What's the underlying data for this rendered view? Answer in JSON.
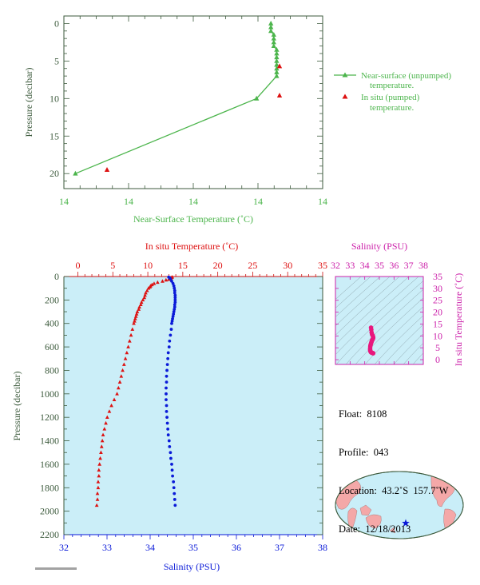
{
  "colors": {
    "green": "#4cb54c",
    "red": "#dd1111",
    "blue": "#0a1ad8",
    "magenta": "#cc22aa",
    "pink": "#e8177d",
    "axis_green": "#3c5a3c",
    "panel_bg": "#cbeef8",
    "land": "#f4a8a8",
    "ocean": "#c9eef8"
  },
  "chart_data": [
    {
      "id": "near-surface",
      "type": "line",
      "xlabel": "Near-Surface Temperature (˚C)",
      "ylabel": "Pressure (decibar)",
      "x_ticks": [
        "14",
        "14",
        "14",
        "14",
        "14"
      ],
      "y_ticks": [
        "0",
        "5",
        "10",
        "15",
        "20"
      ],
      "ylim": [
        -1,
        22
      ],
      "y_inverted": true,
      "grid": false,
      "legend_position": "right",
      "series": [
        {
          "name": "Near-surface (unpumped) temperature.",
          "marker": "triangle",
          "x": [
            13.47,
            13.47,
            13.47,
            13.48,
            13.48,
            13.48,
            13.48,
            13.49,
            13.49,
            13.49,
            13.49,
            13.49,
            13.49,
            13.49,
            13.49,
            13.42,
            12.79
          ],
          "y": [
            0.0,
            0.5,
            1.0,
            1.5,
            2.0,
            2.5,
            3.0,
            3.5,
            4.0,
            4.5,
            5.0,
            5.5,
            6.0,
            6.5,
            7.0,
            10.0,
            20.0
          ]
        },
        {
          "name": "In situ (pumped) temperature.",
          "marker": "triangle",
          "x": [
            13.5,
            13.5,
            12.9
          ],
          "y": [
            5.7,
            9.6,
            19.5
          ]
        }
      ]
    },
    {
      "id": "profile",
      "type": "scatter",
      "title_top": "In situ Temperature (˚C)",
      "xlabel": "Salinity (PSU)",
      "ylabel": "Pressure (decibar)",
      "temp_ticks": [
        "0",
        "5",
        "10",
        "15",
        "20",
        "25",
        "30",
        "35"
      ],
      "sal_ticks": [
        "32",
        "33",
        "34",
        "35",
        "36",
        "37",
        "38"
      ],
      "pressure_ticks": [
        "0",
        "200",
        "400",
        "600",
        "800",
        "1000",
        "1200",
        "1400",
        "1600",
        "1800",
        "2000",
        "2200"
      ],
      "temp_range": [
        -2,
        35
      ],
      "sal_range": [
        32,
        38
      ],
      "pressure_range": [
        0,
        2200
      ],
      "y_inverted": true,
      "series": [
        {
          "name": "In situ Temperature",
          "marker": "triangle",
          "pressure": [
            5,
            10,
            15,
            20,
            25,
            30,
            40,
            50,
            60,
            70,
            80,
            90,
            100,
            120,
            140,
            160,
            180,
            200,
            220,
            240,
            260,
            280,
            300,
            320,
            340,
            360,
            380,
            400,
            450,
            500,
            550,
            600,
            650,
            700,
            750,
            800,
            850,
            900,
            950,
            1000,
            1050,
            1100,
            1150,
            1200,
            1250,
            1300,
            1350,
            1400,
            1450,
            1500,
            1550,
            1600,
            1650,
            1700,
            1750,
            1800,
            1850,
            1900,
            1950
          ],
          "temperature": [
            13.5,
            13.4,
            13.3,
            13.2,
            13.0,
            12.6,
            12.1,
            11.4,
            10.9,
            10.6,
            10.4,
            10.3,
            10.1,
            9.9,
            9.7,
            9.6,
            9.5,
            9.3,
            9.1,
            9.0,
            8.8,
            8.7,
            8.5,
            8.4,
            8.3,
            8.2,
            8.1,
            8.0,
            7.8,
            7.6,
            7.4,
            7.2,
            7.0,
            6.8,
            6.6,
            6.4,
            6.2,
            6.0,
            5.8,
            5.6,
            5.2,
            4.8,
            4.5,
            4.2,
            4.0,
            3.8,
            3.6,
            3.5,
            3.4,
            3.3,
            3.2,
            3.1,
            3.0,
            3.0,
            2.9,
            2.9,
            2.8,
            2.8,
            2.7
          ]
        },
        {
          "name": "Salinity",
          "marker": "dot",
          "pressure": [
            5,
            10,
            20,
            40,
            60,
            80,
            100,
            120,
            140,
            160,
            180,
            200,
            220,
            240,
            260,
            280,
            300,
            320,
            340,
            360,
            380,
            400,
            450,
            500,
            550,
            600,
            650,
            700,
            750,
            800,
            850,
            900,
            950,
            1000,
            1050,
            1100,
            1150,
            1200,
            1250,
            1300,
            1350,
            1400,
            1450,
            1500,
            1550,
            1600,
            1650,
            1700,
            1750,
            1800,
            1850,
            1900,
            1950
          ],
          "salinity": [
            34.43,
            34.45,
            34.47,
            34.5,
            34.53,
            34.55,
            34.56,
            34.57,
            34.57,
            34.58,
            34.58,
            34.58,
            34.58,
            34.57,
            34.57,
            34.56,
            34.55,
            34.54,
            34.53,
            34.52,
            34.51,
            34.5,
            34.49,
            34.47,
            34.45,
            34.44,
            34.42,
            34.41,
            34.4,
            34.39,
            34.38,
            34.38,
            34.37,
            34.37,
            34.37,
            34.38,
            34.38,
            34.39,
            34.4,
            34.41,
            34.42,
            34.44,
            34.45,
            34.47,
            34.48,
            34.5,
            34.51,
            34.52,
            34.54,
            34.55,
            34.56,
            34.57,
            34.58
          ]
        }
      ]
    },
    {
      "id": "ts-diagram",
      "type": "scatter",
      "title_top": "Salinity (PSU)",
      "ylabel": "In situ Temperature (˚C)",
      "sal_ticks": [
        "32",
        "33",
        "34",
        "35",
        "36",
        "37",
        "38"
      ],
      "temp_ticks": [
        "0",
        "5",
        "10",
        "15",
        "20",
        "25",
        "30",
        "35"
      ],
      "sal_range": [
        32,
        38
      ],
      "temp_range": [
        -2,
        35
      ],
      "points_salinity": [
        34.43,
        34.45,
        34.47,
        34.5,
        34.55,
        34.57,
        34.58,
        34.57,
        34.55,
        34.53,
        34.51,
        34.49,
        34.47,
        34.45,
        34.43,
        34.41,
        34.39,
        34.38,
        34.37,
        34.37,
        34.38,
        34.39,
        34.41,
        34.43,
        34.46,
        34.49,
        34.52,
        34.55,
        34.57,
        34.58
      ],
      "points_temperature": [
        13.5,
        12.6,
        11.4,
        10.6,
        10.1,
        9.6,
        9.3,
        9.0,
        8.7,
        8.4,
        8.2,
        8.0,
        7.6,
        7.2,
        6.8,
        6.4,
        6.0,
        5.6,
        4.8,
        4.2,
        3.8,
        3.5,
        3.3,
        3.1,
        3.0,
        2.9,
        2.8,
        2.8,
        2.7,
        2.7
      ]
    }
  ],
  "legend": {
    "near_surface_line1": "Near-surface (unpumped)",
    "near_surface_line2": "temperature.",
    "in_situ_line1": "In situ (pumped)",
    "in_situ_line2": "temperature."
  },
  "info": {
    "float": "Float:  8108",
    "profile": "Profile:  043",
    "location": "Location:  43.2˚S  157.7˚W",
    "date": "Date:  12/18/2013"
  },
  "map": {
    "float_marker": "star-icon"
  }
}
